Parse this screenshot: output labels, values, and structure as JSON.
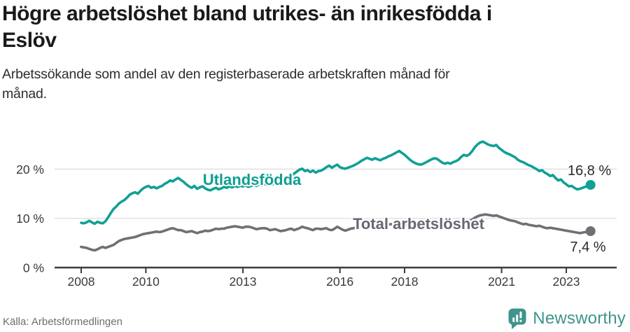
{
  "title": {
    "line1": "Högre arbetslöshet bland utrikes- än inrikesfödda i",
    "line2": "Eslöv"
  },
  "subtitle": {
    "line1": "Arbetssökande som andel av den registerbaserade arbetskraften månad för",
    "line2": "månad."
  },
  "source": "Källa: Arbetsförmedlingen",
  "logo": {
    "text": "Newsworthy",
    "icon": "newsworthy-chart-bubble-icon",
    "color": "#3f948d"
  },
  "colors": {
    "foreign_born_line": "#10a094",
    "foreign_born_label": "#0f9e92",
    "total_line": "#736e75",
    "total_label": "#6a6570",
    "grid": "#dddddd",
    "axis": "#3c3c3c",
    "tick_text": "#3a3a3a",
    "value_text": "#2a2a2a"
  },
  "chart_data": {
    "type": "line",
    "title": "Högre arbetslöshet bland utrikes- än inrikesfödda i Eslöv",
    "subtitle": "Arbetssökande som andel av den registerbaserade arbetskraften månad för månad.",
    "grid": true,
    "legend": "inline-series-labels",
    "x_start": 2008.0,
    "x_step_months": 1,
    "x_end": 2023.75,
    "x_ticks": [
      2008,
      2010,
      2013,
      2016,
      2018,
      2021,
      2023
    ],
    "y_ticks": [
      {
        "label": "0 %",
        "value": 0
      },
      {
        "label": "10 %",
        "value": 10
      },
      {
        "label": "20 %",
        "value": 20
      }
    ],
    "y_range": [
      0,
      27
    ],
    "series": [
      {
        "name": "Utlandsfödda",
        "color": "#10a094",
        "end_label": "16,8 %",
        "end_value": 16.8,
        "values": [
          9.1,
          9.0,
          9.2,
          9.5,
          9.2,
          8.9,
          9.3,
          9.1,
          9.0,
          9.4,
          10.2,
          11.1,
          11.9,
          12.4,
          13.0,
          13.4,
          13.7,
          14.2,
          14.8,
          15.1,
          15.3,
          15.0,
          15.6,
          16.1,
          16.4,
          16.6,
          16.2,
          16.4,
          16.1,
          16.4,
          16.6,
          17.0,
          17.3,
          17.7,
          17.5,
          17.9,
          18.2,
          17.8,
          17.4,
          16.9,
          16.5,
          16.2,
          16.6,
          16.0,
          16.3,
          16.5,
          16.1,
          15.8,
          15.7,
          16.0,
          16.2,
          15.9,
          16.1,
          16.4,
          16.2,
          16.5,
          16.3,
          16.6,
          16.4,
          16.6,
          16.5,
          16.7,
          16.4,
          16.6,
          16.8,
          16.6,
          16.9,
          16.7,
          17.0,
          16.8,
          17.1,
          16.9,
          17.2,
          17.0,
          17.3,
          17.6,
          17.9,
          18.3,
          18.7,
          19.1,
          19.5,
          19.9,
          20.1,
          19.6,
          19.8,
          19.4,
          19.7,
          19.3,
          19.6,
          19.7,
          20.0,
          20.4,
          20.7,
          20.3,
          20.6,
          20.9,
          20.4,
          20.2,
          20.1,
          20.3,
          20.5,
          20.7,
          21.0,
          21.3,
          21.7,
          22.0,
          22.3,
          22.1,
          21.9,
          22.2,
          22.0,
          21.8,
          22.1,
          22.3,
          22.6,
          22.8,
          23.1,
          23.4,
          23.7,
          23.3,
          22.9,
          22.4,
          21.9,
          21.5,
          21.2,
          21.0,
          20.9,
          21.1,
          21.4,
          21.7,
          22.0,
          22.2,
          22.1,
          21.7,
          21.3,
          21.1,
          21.3,
          21.1,
          21.4,
          21.6,
          21.9,
          22.5,
          22.9,
          22.7,
          23.0,
          23.6,
          24.4,
          25.0,
          25.4,
          25.6,
          25.3,
          25.0,
          24.8,
          24.7,
          24.9,
          24.3,
          23.9,
          23.5,
          23.2,
          23.0,
          22.7,
          22.4,
          21.9,
          21.6,
          21.4,
          21.1,
          20.8,
          20.6,
          20.3,
          20.0,
          19.6,
          19.8,
          19.3,
          19.0,
          18.6,
          18.8,
          18.2,
          17.7,
          17.9,
          17.3,
          16.9,
          16.5,
          16.6,
          16.2,
          15.9,
          16.0,
          16.2,
          16.4,
          16.6,
          16.8
        ]
      },
      {
        "name": "Total arbetslöshet",
        "color": "#736e75",
        "end_label": "7,4 %",
        "end_value": 7.4,
        "values": [
          4.2,
          4.1,
          4.0,
          3.8,
          3.6,
          3.5,
          3.7,
          4.0,
          4.2,
          4.0,
          4.2,
          4.4,
          4.6,
          5.0,
          5.4,
          5.6,
          5.8,
          5.9,
          6.0,
          6.1,
          6.2,
          6.4,
          6.6,
          6.8,
          6.9,
          7.0,
          7.1,
          7.2,
          7.3,
          7.2,
          7.3,
          7.5,
          7.7,
          7.9,
          8.0,
          7.8,
          7.6,
          7.6,
          7.4,
          7.2,
          7.3,
          7.4,
          7.2,
          7.0,
          7.2,
          7.3,
          7.5,
          7.4,
          7.5,
          7.7,
          7.9,
          7.8,
          7.9,
          7.9,
          8.1,
          8.2,
          8.3,
          8.4,
          8.3,
          8.2,
          8.1,
          8.3,
          8.3,
          8.2,
          8.0,
          7.8,
          7.9,
          8.0,
          8.0,
          7.9,
          7.6,
          7.7,
          7.8,
          7.6,
          7.4,
          7.5,
          7.6,
          7.8,
          7.9,
          7.6,
          7.8,
          8.0,
          8.3,
          8.1,
          8.0,
          7.8,
          7.6,
          7.9,
          7.9,
          7.8,
          7.9,
          8.0,
          7.7,
          7.6,
          7.9,
          8.3,
          8.0,
          7.7,
          7.5,
          7.7,
          7.9,
          8.0,
          8.1,
          8.2,
          8.3,
          8.4,
          8.5,
          8.4,
          8.3,
          8.4,
          8.5,
          8.5,
          8.6,
          8.7,
          8.8,
          8.8,
          8.9,
          9.0,
          9.0,
          8.9,
          8.8,
          8.7,
          8.6,
          8.5,
          8.5,
          8.6,
          8.7,
          8.7,
          8.8,
          8.9,
          9.0,
          9.0,
          8.9,
          8.9,
          9.0,
          9.0,
          9.1,
          9.1,
          9.2,
          9.2,
          9.3,
          9.4,
          9.4,
          9.5,
          9.5,
          9.7,
          10.1,
          10.4,
          10.6,
          10.7,
          10.8,
          10.7,
          10.6,
          10.5,
          10.6,
          10.4,
          10.2,
          10.0,
          9.8,
          9.6,
          9.5,
          9.4,
          9.2,
          9.0,
          8.8,
          8.9,
          8.7,
          8.6,
          8.5,
          8.4,
          8.5,
          8.3,
          8.1,
          8.0,
          8.1,
          8.0,
          7.9,
          7.8,
          7.7,
          7.6,
          7.5,
          7.4,
          7.3,
          7.2,
          7.1,
          7.0,
          7.1,
          7.2,
          7.3,
          7.4
        ]
      }
    ]
  }
}
